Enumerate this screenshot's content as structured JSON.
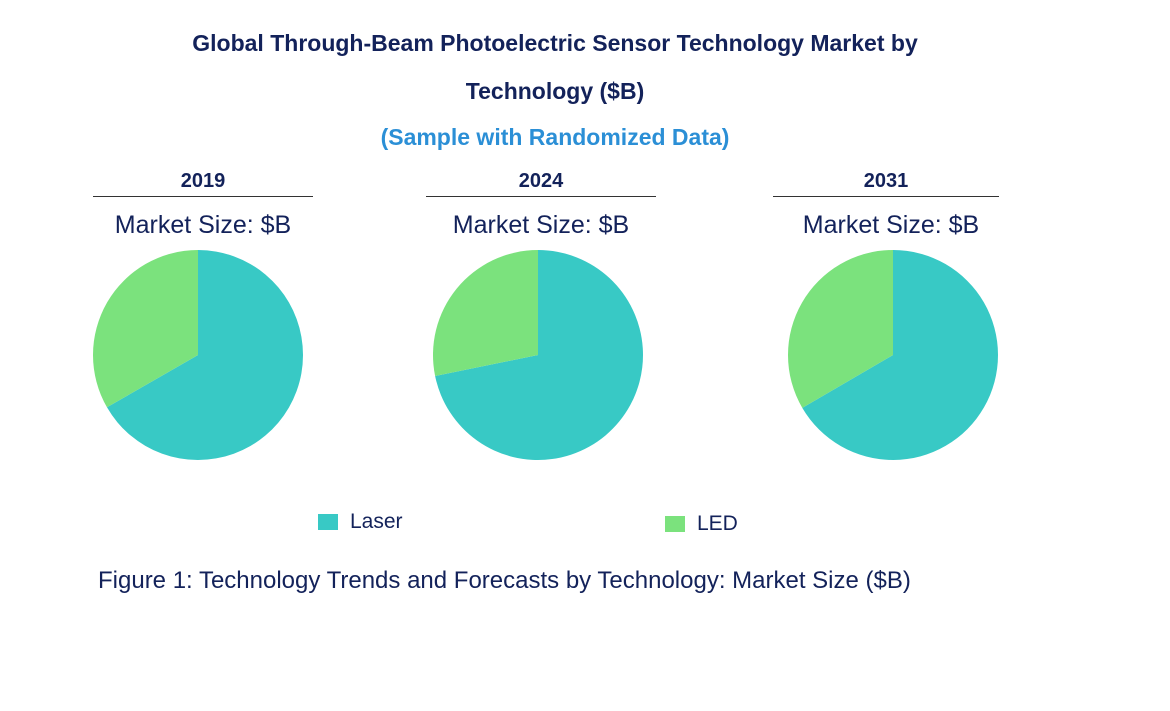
{
  "chart_data": {
    "type": "pie",
    "title_line1": "Global Through-Beam Photoelectric Sensor Technology Market by",
    "title_line2": "Technology ($B)",
    "subtitle": "(Sample with Randomized Data)",
    "legend": [
      {
        "name": "Laser",
        "color": "#38c9c5"
      },
      {
        "name": "LED",
        "color": "#7be27d"
      }
    ],
    "pies": [
      {
        "year": "2019",
        "label": "Market Size: $B",
        "values": {
          "Laser": 66.7,
          "LED": 33.3
        }
      },
      {
        "year": "2024",
        "label": "Market Size: $B",
        "values": {
          "Laser": 71.8,
          "LED": 28.2
        }
      },
      {
        "year": "2031",
        "label": "Market Size: $B",
        "values": {
          "Laser": 66.6,
          "LED": 33.4
        }
      }
    ],
    "caption": "Figure 1: Technology Trends and Forecasts by Technology: Market Size ($B)"
  }
}
